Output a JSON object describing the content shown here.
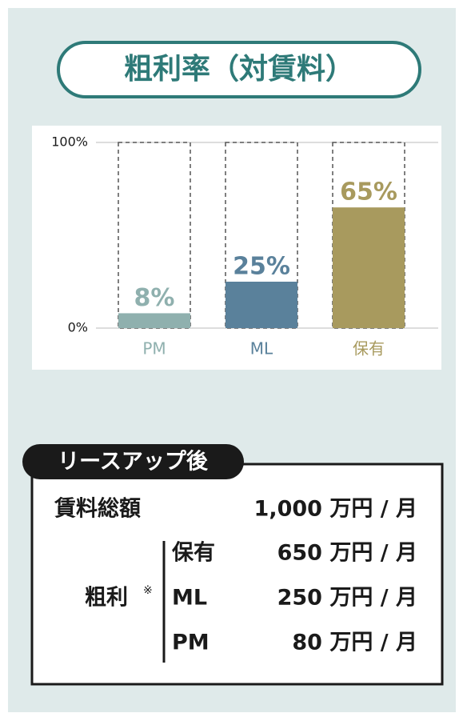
{
  "chart_data": {
    "type": "bar",
    "title": "粗利率（対賃料）",
    "categories": [
      "PM",
      "ML",
      "保有"
    ],
    "values": [
      8,
      25,
      65
    ],
    "value_labels": [
      "8%",
      "25%",
      "65%"
    ],
    "colors": [
      "#8fb0ae",
      "#5a819b",
      "#a89a5e"
    ],
    "ylim": [
      0,
      100
    ],
    "yticks": [
      {
        "value": 0,
        "label": "0%"
      },
      {
        "value": 100,
        "label": "100%"
      }
    ],
    "grid": true
  },
  "table": {
    "tag": "リースアップ後",
    "total": {
      "label": "賃料総額",
      "value": "1,000 万円 / 月"
    },
    "gross": {
      "label": "粗利",
      "note": "※",
      "rows": [
        {
          "name": "保有",
          "value": "650 万円 / 月"
        },
        {
          "name": "ML",
          "value": "250 万円 / 月"
        },
        {
          "name": "PM",
          "value": "80 万円 / 月"
        }
      ]
    }
  }
}
